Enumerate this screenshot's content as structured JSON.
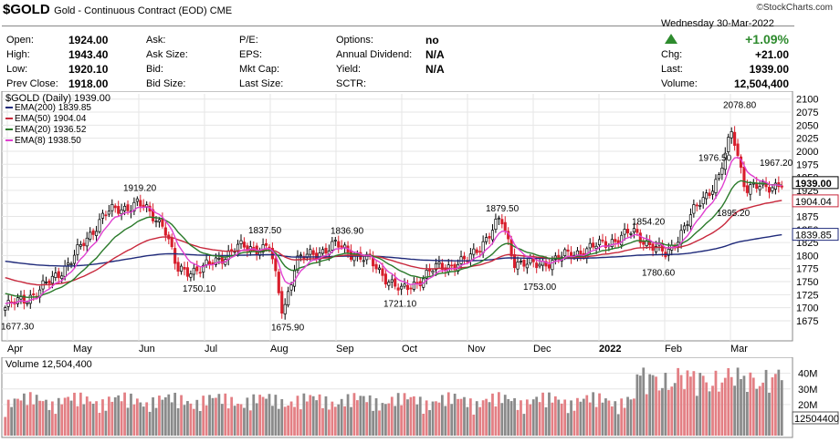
{
  "header": {
    "symbol": "$GOLD",
    "description": "Gold - Continuous Contract (EOD)  CME",
    "brand": "©StockCharts.com",
    "date": "Wednesday  30-Mar-2022",
    "change_pct": "+1.09%",
    "chg_label": "Chg:",
    "chg_value": "+21.00",
    "last_label": "Last:",
    "last_value": "1939.00",
    "volume_label": "Volume:",
    "volume_value": "12,504,400",
    "fields": [
      {
        "label": "Open:",
        "value": "1924.00"
      },
      {
        "label": "High:",
        "value": "1943.40"
      },
      {
        "label": "Low:",
        "value": "1920.10"
      },
      {
        "label": "Prev Close:",
        "value": "1918.00"
      },
      {
        "label": "Ask:",
        "value": ""
      },
      {
        "label": "Ask Size:",
        "value": ""
      },
      {
        "label": "Bid:",
        "value": ""
      },
      {
        "label": "Bid Size:",
        "value": ""
      },
      {
        "label": "P/E:",
        "value": ""
      },
      {
        "label": "EPS:",
        "value": ""
      },
      {
        "label": "Mkt Cap:",
        "value": ""
      },
      {
        "label": "Last Size:",
        "value": ""
      },
      {
        "label": "Options:",
        "value": "no"
      },
      {
        "label": "Annual Dividend:",
        "value": "N/A"
      },
      {
        "label": "Yield:",
        "value": "N/A"
      },
      {
        "label": "SCTR:",
        "value": ""
      }
    ],
    "up_color": "#2e8b2e"
  },
  "chart_data": [
    {
      "type": "candlestick",
      "title": "$GOLD (Daily) 1939.00",
      "ylim": [
        1640,
        2110
      ],
      "yticks": [
        1675,
        1700,
        1725,
        1750,
        1775,
        1800,
        1825,
        1850,
        1875,
        1900,
        1925,
        1950,
        1975,
        2000,
        2025,
        2050,
        2075,
        2100
      ],
      "xlabels": [
        "Apr",
        "May",
        "Jun",
        "Jul",
        "Aug",
        "Sep",
        "Oct",
        "Nov",
        "Dec",
        "2022",
        "Feb",
        "Mar"
      ],
      "legend": [
        {
          "name": "EMA(200) 1839.85",
          "color": "#1f2a7a"
        },
        {
          "name": "EMA(50) 1904.04",
          "color": "#c8283c"
        },
        {
          "name": "EMA(20) 1936.52",
          "color": "#2a7a2a"
        },
        {
          "name": "EMA(8) 1938.50",
          "color": "#e040d0"
        }
      ],
      "price_points": [
        {
          "month": "Apr",
          "x": 0.0,
          "close": 1700
        },
        {
          "x": 0.5,
          "close": 1730
        },
        {
          "month": "May",
          "x": 1.0,
          "close": 1790
        },
        {
          "x": 1.5,
          "close": 1880
        },
        {
          "month": "Jun",
          "x": 2.0,
          "close": 1900
        },
        {
          "x": 2.4,
          "close": 1860
        },
        {
          "x": 2.6,
          "close": 1770
        },
        {
          "month": "Jul",
          "x": 3.0,
          "close": 1775
        },
        {
          "x": 3.5,
          "close": 1815
        },
        {
          "month": "Aug",
          "x": 4.0,
          "close": 1815
        },
        {
          "x": 4.2,
          "close": 1690
        },
        {
          "x": 4.4,
          "close": 1790
        },
        {
          "month": "Sep",
          "x": 5.0,
          "close": 1820
        },
        {
          "x": 5.5,
          "close": 1790
        },
        {
          "month": "Oct",
          "x": 6.0,
          "close": 1730
        },
        {
          "x": 6.5,
          "close": 1775
        },
        {
          "month": "Nov",
          "x": 7.0,
          "close": 1790
        },
        {
          "x": 7.5,
          "close": 1870
        },
        {
          "x": 7.7,
          "close": 1790
        },
        {
          "month": "Dec",
          "x": 8.0,
          "close": 1780
        },
        {
          "x": 8.5,
          "close": 1800
        },
        {
          "month": "2022",
          "x": 9.0,
          "close": 1820
        },
        {
          "x": 9.5,
          "close": 1845
        },
        {
          "month": "Feb",
          "x": 10.0,
          "close": 1800
        },
        {
          "x": 10.5,
          "close": 1900
        },
        {
          "x": 10.8,
          "close": 1950
        },
        {
          "month": "Mar",
          "x": 11.0,
          "close": 2040
        },
        {
          "x": 11.2,
          "close": 1930
        },
        {
          "x": 11.5,
          "close": 1930
        },
        {
          "x": 11.7,
          "close": 1939
        }
      ],
      "annotations": [
        "1677.30",
        "1919.20",
        "1750.10",
        "1837.50",
        "1675.90",
        "1836.90",
        "1721.10",
        "1879.50",
        "1753.00",
        "1854.20",
        "1780.60",
        "1976.50",
        "2078.80",
        "1967.20",
        "1895.20"
      ],
      "last_value_labels": [
        {
          "value": 1939.0,
          "text": "1939.00",
          "color": "#000000"
        },
        {
          "value": 1904.04,
          "text": "1904.04",
          "color": "#c8283c"
        },
        {
          "value": 1839.85,
          "text": "1839.85",
          "color": "#1f2a7a"
        }
      ],
      "grid": true
    },
    {
      "type": "bar",
      "title": "Volume 12,504,400",
      "ylim": [
        0,
        48
      ],
      "yticks": [
        "20M",
        "30M",
        "40M"
      ],
      "last_value_label": "12504400",
      "up_color": "#e37f84",
      "down_color": "#8a8a8a"
    }
  ]
}
